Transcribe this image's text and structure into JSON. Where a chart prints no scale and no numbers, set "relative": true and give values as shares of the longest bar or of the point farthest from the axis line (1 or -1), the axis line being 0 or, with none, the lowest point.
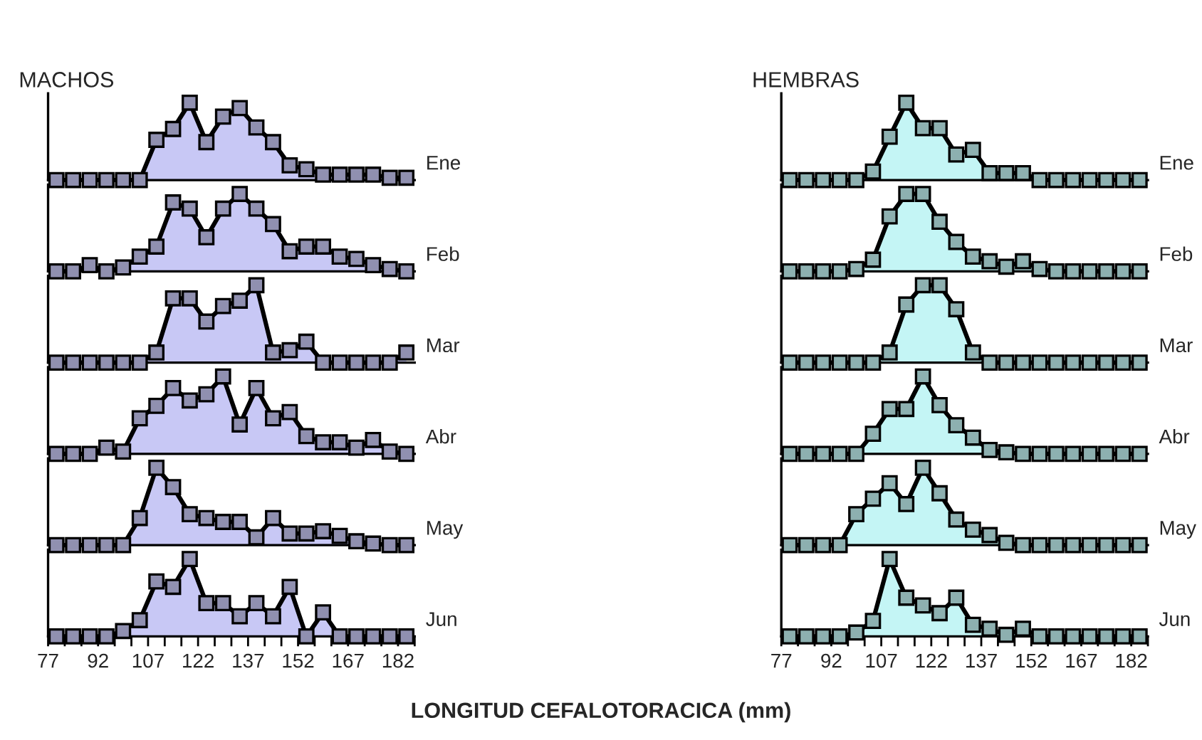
{
  "chart_data": [
    {
      "type": "area",
      "title": "MACHOS",
      "relative": true,
      "marker": "square",
      "tick_labels": false,
      "xlim": [
        77,
        187
      ],
      "x": [
        79.5,
        84.5,
        89.5,
        94.5,
        99.5,
        104.5,
        109.5,
        114.5,
        119.5,
        124.5,
        129.5,
        134.5,
        139.5,
        144.5,
        149.5,
        154.5,
        159.5,
        164.5,
        169.5,
        174.5,
        179.5,
        184.5
      ],
      "series": [
        {
          "name": "Ene",
          "color": "#c8c8f5",
          "values": [
            0,
            0,
            0,
            0,
            0,
            0,
            0.52,
            0.66,
            1,
            0.49,
            0.82,
            0.93,
            0.68,
            0.49,
            0.19,
            0.14,
            0.07,
            0.07,
            0.07,
            0.07,
            0.03,
            0.03
          ]
        }
      ]
    },
    {
      "type": "area",
      "relative": true,
      "marker": "square",
      "tick_labels": false,
      "xlim": [
        77,
        187
      ],
      "x": [
        79.5,
        84.5,
        89.5,
        94.5,
        99.5,
        104.5,
        109.5,
        114.5,
        119.5,
        124.5,
        129.5,
        134.5,
        139.5,
        144.5,
        149.5,
        154.5,
        159.5,
        164.5,
        169.5,
        174.5,
        179.5,
        184.5
      ],
      "series": [
        {
          "name": "Feb",
          "color": "#c8c8f5",
          "values": [
            0,
            0,
            0.08,
            0,
            0.05,
            0.19,
            0.32,
            0.89,
            0.81,
            0.44,
            0.81,
            1,
            0.81,
            0.61,
            0.26,
            0.32,
            0.32,
            0.19,
            0.16,
            0.08,
            0.03,
            0
          ]
        }
      ]
    },
    {
      "type": "area",
      "relative": true,
      "marker": "square",
      "tick_labels": false,
      "xlim": [
        77,
        187
      ],
      "x": [
        79.5,
        84.5,
        89.5,
        94.5,
        99.5,
        104.5,
        109.5,
        114.5,
        119.5,
        124.5,
        129.5,
        134.5,
        139.5,
        144.5,
        149.5,
        154.5,
        159.5,
        164.5,
        169.5,
        174.5,
        179.5,
        184.5
      ],
      "series": [
        {
          "name": "Mar",
          "color": "#c8c8f5",
          "values": [
            0,
            0,
            0,
            0,
            0,
            0,
            0.13,
            0.83,
            0.83,
            0.53,
            0.73,
            0.8,
            1,
            0.13,
            0.16,
            0.27,
            0,
            0,
            0,
            0,
            0,
            0.13
          ]
        }
      ]
    },
    {
      "type": "area",
      "relative": true,
      "marker": "square",
      "tick_labels": false,
      "xlim": [
        77,
        187
      ],
      "x": [
        79.5,
        84.5,
        89.5,
        94.5,
        99.5,
        104.5,
        109.5,
        114.5,
        119.5,
        124.5,
        129.5,
        134.5,
        139.5,
        144.5,
        149.5,
        154.5,
        159.5,
        164.5,
        169.5,
        174.5,
        179.5,
        184.5
      ],
      "series": [
        {
          "name": "Abr",
          "color": "#c8c8f5",
          "values": [
            0,
            0,
            0,
            0.08,
            0.03,
            0.46,
            0.62,
            0.85,
            0.69,
            0.77,
            1,
            0.38,
            0.85,
            0.46,
            0.54,
            0.23,
            0.15,
            0.15,
            0.08,
            0.18,
            0.03,
            0
          ]
        }
      ]
    },
    {
      "type": "area",
      "relative": true,
      "marker": "square",
      "tick_labels": false,
      "xlim": [
        77,
        187
      ],
      "x": [
        79.5,
        84.5,
        89.5,
        94.5,
        99.5,
        104.5,
        109.5,
        114.5,
        119.5,
        124.5,
        129.5,
        134.5,
        139.5,
        144.5,
        149.5,
        154.5,
        159.5,
        164.5,
        169.5,
        174.5,
        179.5,
        184.5
      ],
      "series": [
        {
          "name": "May",
          "color": "#c8c8f5",
          "values": [
            0,
            0,
            0,
            0,
            0,
            0.35,
            1.0,
            0.75,
            0.4,
            0.35,
            0.3,
            0.3,
            0.1,
            0.35,
            0.15,
            0.15,
            0.18,
            0.12,
            0.05,
            0.02,
            0,
            0
          ]
        }
      ]
    },
    {
      "type": "area",
      "relative": true,
      "marker": "square",
      "tick_labels": "x",
      "xlabel": "LONGITUD CEFALOTORACICA (mm)",
      "xlim": [
        77,
        187
      ],
      "x": [
        79.5,
        84.5,
        89.5,
        94.5,
        99.5,
        104.5,
        109.5,
        114.5,
        119.5,
        124.5,
        129.5,
        134.5,
        139.5,
        144.5,
        149.5,
        154.5,
        159.5,
        164.5,
        169.5,
        174.5,
        179.5,
        184.5
      ],
      "xticks": [
        77,
        {
          "value": 82,
          "label": null
        },
        {
          "value": 87,
          "label": null
        },
        92,
        {
          "value": 97,
          "label": null
        },
        {
          "value": 102,
          "label": null
        },
        107,
        {
          "value": 112,
          "label": null
        },
        {
          "value": 117,
          "label": null
        },
        122,
        {
          "value": 127,
          "label": null
        },
        {
          "value": 132,
          "label": null
        },
        137,
        {
          "value": 142,
          "label": null
        },
        {
          "value": 147,
          "label": null
        },
        152,
        {
          "value": 157,
          "label": null
        },
        {
          "value": 162,
          "label": null
        },
        167,
        {
          "value": 172,
          "label": null
        },
        {
          "value": 177,
          "label": null
        },
        182,
        {
          "value": 187,
          "label": null
        }
      ],
      "series": [
        {
          "name": "Jun",
          "color": "#c8c8f5",
          "values": [
            0,
            0,
            0,
            0,
            0.07,
            0.21,
            0.71,
            0.64,
            1,
            0.43,
            0.43,
            0.26,
            0.43,
            0.26,
            0.64,
            0,
            0.31,
            0,
            0,
            0,
            0,
            0
          ]
        }
      ]
    },
    {
      "type": "area",
      "title": "HEMBRAS",
      "relative": true,
      "marker": "square",
      "tick_labels": false,
      "xlim": [
        77,
        187
      ],
      "x": [
        79.5,
        84.5,
        89.5,
        94.5,
        99.5,
        104.5,
        109.5,
        114.5,
        119.5,
        124.5,
        129.5,
        134.5,
        139.5,
        144.5,
        149.5,
        154.5,
        159.5,
        164.5,
        169.5,
        174.5,
        179.5,
        184.5
      ],
      "series": [
        {
          "name": "Ene",
          "color": "#c4f5f5",
          "values": [
            0,
            0,
            0,
            0,
            0,
            0.11,
            0.56,
            1,
            0.67,
            0.67,
            0.33,
            0.39,
            0.09,
            0.09,
            0.09,
            0,
            0,
            0,
            0,
            0,
            0,
            0
          ]
        }
      ]
    },
    {
      "type": "area",
      "relative": true,
      "marker": "square",
      "tick_labels": false,
      "xlim": [
        77,
        187
      ],
      "x": [
        79.5,
        84.5,
        89.5,
        94.5,
        99.5,
        104.5,
        109.5,
        114.5,
        119.5,
        124.5,
        129.5,
        134.5,
        139.5,
        144.5,
        149.5,
        154.5,
        159.5,
        164.5,
        169.5,
        174.5,
        179.5,
        184.5
      ],
      "series": [
        {
          "name": "Feb",
          "color": "#c4f5f5",
          "values": [
            0,
            0,
            0,
            0,
            0.03,
            0.15,
            0.71,
            1,
            1,
            0.64,
            0.38,
            0.19,
            0.13,
            0.06,
            0.13,
            0.03,
            0,
            0,
            0,
            0,
            0,
            0
          ]
        }
      ]
    },
    {
      "type": "area",
      "relative": true,
      "marker": "square",
      "tick_labels": false,
      "xlim": [
        77,
        187
      ],
      "x": [
        79.5,
        84.5,
        89.5,
        94.5,
        99.5,
        104.5,
        109.5,
        114.5,
        119.5,
        124.5,
        129.5,
        134.5,
        139.5,
        144.5,
        149.5,
        154.5,
        159.5,
        164.5,
        169.5,
        174.5,
        179.5,
        184.5
      ],
      "series": [
        {
          "name": "Mar",
          "color": "#c4f5f5",
          "values": [
            0,
            0,
            0,
            0,
            0,
            0,
            0.13,
            0.75,
            1,
            1,
            0.69,
            0.13,
            0,
            0,
            0,
            0,
            0,
            0,
            0,
            0,
            0,
            0
          ]
        }
      ]
    },
    {
      "type": "area",
      "relative": true,
      "marker": "square",
      "tick_labels": false,
      "xlim": [
        77,
        187
      ],
      "x": [
        79.5,
        84.5,
        89.5,
        94.5,
        99.5,
        104.5,
        109.5,
        114.5,
        119.5,
        124.5,
        129.5,
        134.5,
        139.5,
        144.5,
        149.5,
        154.5,
        159.5,
        164.5,
        169.5,
        174.5,
        179.5,
        184.5
      ],
      "series": [
        {
          "name": "Abr",
          "color": "#c4f5f5",
          "values": [
            0,
            0,
            0,
            0,
            0,
            0.26,
            0.58,
            0.58,
            1,
            0.63,
            0.37,
            0.21,
            0.05,
            0.02,
            0,
            0,
            0,
            0,
            0,
            0,
            0,
            0
          ]
        }
      ]
    },
    {
      "type": "area",
      "relative": true,
      "marker": "square",
      "tick_labels": false,
      "xlim": [
        77,
        187
      ],
      "x": [
        79.5,
        84.5,
        89.5,
        94.5,
        99.5,
        104.5,
        109.5,
        114.5,
        119.5,
        124.5,
        129.5,
        134.5,
        139.5,
        144.5,
        149.5,
        154.5,
        159.5,
        164.5,
        169.5,
        174.5,
        179.5,
        184.5
      ],
      "series": [
        {
          "name": "May",
          "color": "#c4f5f5",
          "values": [
            0,
            0,
            0,
            0,
            0.4,
            0.6,
            0.8,
            0.53,
            1,
            0.67,
            0.33,
            0.2,
            0.13,
            0.03,
            0,
            0,
            0,
            0,
            0,
            0,
            0,
            0
          ]
        }
      ]
    },
    {
      "type": "area",
      "relative": true,
      "marker": "square",
      "tick_labels": "x",
      "xlim": [
        77,
        187
      ],
      "x": [
        79.5,
        84.5,
        89.5,
        94.5,
        99.5,
        104.5,
        109.5,
        114.5,
        119.5,
        124.5,
        129.5,
        134.5,
        139.5,
        144.5,
        149.5,
        154.5,
        159.5,
        164.5,
        169.5,
        174.5,
        179.5,
        184.5
      ],
      "xticks": [
        77,
        {
          "value": 82,
          "label": null
        },
        {
          "value": 87,
          "label": null
        },
        92,
        {
          "value": 97,
          "label": null
        },
        {
          "value": 102,
          "label": null
        },
        107,
        {
          "value": 112,
          "label": null
        },
        {
          "value": 117,
          "label": null
        },
        122,
        {
          "value": 127,
          "label": null
        },
        {
          "value": 132,
          "label": null
        },
        137,
        {
          "value": 142,
          "label": null
        },
        {
          "value": 147,
          "label": null
        },
        152,
        {
          "value": 157,
          "label": null
        },
        {
          "value": 162,
          "label": null
        },
        167,
        {
          "value": 172,
          "label": null
        },
        {
          "value": 177,
          "label": null
        },
        182,
        {
          "value": 187,
          "label": null
        }
      ],
      "series": [
        {
          "name": "Jun",
          "color": "#c4f5f5",
          "values": [
            0,
            0,
            0,
            0,
            0.05,
            0.2,
            1.0,
            0.5,
            0.4,
            0.3,
            0.5,
            0.15,
            0.1,
            0.02,
            0.1,
            0,
            0,
            0,
            0,
            0,
            0,
            0
          ]
        }
      ]
    }
  ]
}
